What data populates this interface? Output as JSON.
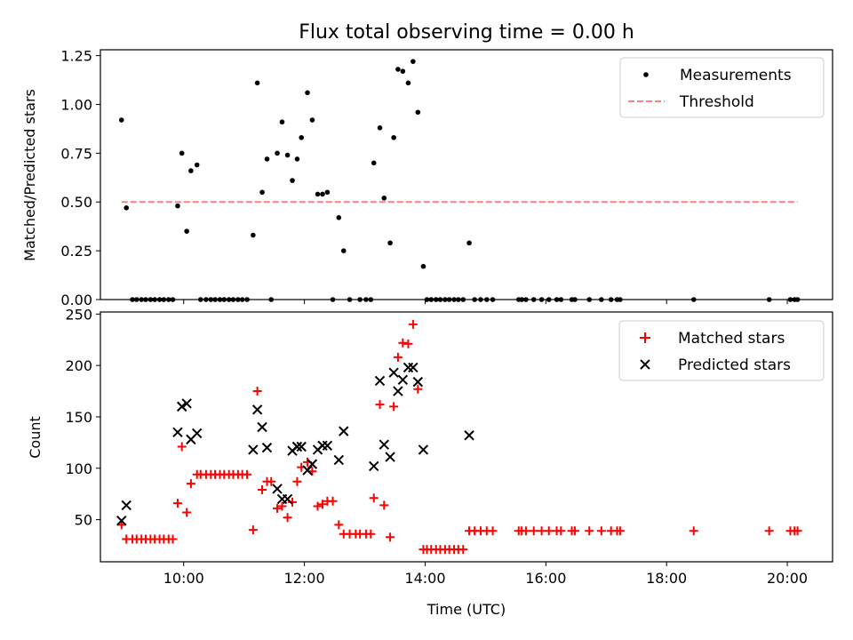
{
  "figure": {
    "title": "Flux total observing time = 0.00 h"
  },
  "chart_data": [
    {
      "type": "scatter",
      "ylabel": "Matched/Predicted stars",
      "xlabel": "",
      "xlim": [
        8.62,
        20.75
      ],
      "ylim": [
        0,
        1.28
      ],
      "yticks": [
        0.0,
        0.25,
        0.5,
        0.75,
        1.0,
        1.25
      ],
      "ytick_labels": [
        "0.00",
        "0.25",
        "0.50",
        "0.75",
        "1.00",
        "1.25"
      ],
      "xticks": [
        10,
        12,
        14,
        16,
        18,
        20
      ],
      "grid": false,
      "legend": {
        "position": "top-right",
        "entries": [
          "Measurements",
          "Threshold"
        ]
      },
      "series": [
        {
          "name": "Measurements",
          "color": "#000000",
          "marker": "dot",
          "points": [
            [
              8.97,
              0.92
            ],
            [
              9.05,
              0.47
            ],
            [
              9.15,
              0.0
            ],
            [
              9.22,
              0.0
            ],
            [
              9.3,
              0.0
            ],
            [
              9.37,
              0.0
            ],
            [
              9.45,
              0.0
            ],
            [
              9.52,
              0.0
            ],
            [
              9.6,
              0.0
            ],
            [
              9.67,
              0.0
            ],
            [
              9.75,
              0.0
            ],
            [
              9.82,
              0.0
            ],
            [
              9.9,
              0.48
            ],
            [
              9.97,
              0.75
            ],
            [
              10.05,
              0.35
            ],
            [
              10.12,
              0.66
            ],
            [
              10.22,
              0.69
            ],
            [
              10.28,
              0.0
            ],
            [
              10.37,
              0.0
            ],
            [
              10.45,
              0.0
            ],
            [
              10.52,
              0.0
            ],
            [
              10.6,
              0.0
            ],
            [
              10.67,
              0.0
            ],
            [
              10.75,
              0.0
            ],
            [
              10.82,
              0.0
            ],
            [
              10.9,
              0.0
            ],
            [
              10.97,
              0.0
            ],
            [
              11.05,
              0.0
            ],
            [
              11.15,
              0.33
            ],
            [
              11.22,
              1.11
            ],
            [
              11.3,
              0.55
            ],
            [
              11.38,
              0.72
            ],
            [
              11.45,
              0.0
            ],
            [
              11.55,
              0.75
            ],
            [
              11.63,
              0.91
            ],
            [
              11.72,
              0.74
            ],
            [
              11.8,
              0.61
            ],
            [
              11.88,
              0.72
            ],
            [
              11.95,
              0.83
            ],
            [
              12.05,
              1.06
            ],
            [
              12.13,
              0.92
            ],
            [
              12.22,
              0.54
            ],
            [
              12.3,
              0.54
            ],
            [
              12.38,
              0.55
            ],
            [
              12.47,
              0.0
            ],
            [
              12.57,
              0.42
            ],
            [
              12.65,
              0.25
            ],
            [
              12.75,
              0.0
            ],
            [
              12.92,
              0.0
            ],
            [
              13.02,
              0.0
            ],
            [
              13.1,
              0.0
            ],
            [
              13.15,
              0.7
            ],
            [
              13.25,
              0.88
            ],
            [
              13.32,
              0.52
            ],
            [
              13.42,
              0.29
            ],
            [
              13.48,
              0.83
            ],
            [
              13.55,
              1.18
            ],
            [
              13.63,
              1.17
            ],
            [
              13.72,
              1.11
            ],
            [
              13.8,
              1.22
            ],
            [
              13.88,
              0.96
            ],
            [
              13.97,
              0.17
            ],
            [
              14.03,
              0.0
            ],
            [
              14.1,
              0.0
            ],
            [
              14.18,
              0.0
            ],
            [
              14.25,
              0.0
            ],
            [
              14.33,
              0.0
            ],
            [
              14.4,
              0.0
            ],
            [
              14.48,
              0.0
            ],
            [
              14.55,
              0.0
            ],
            [
              14.63,
              0.0
            ],
            [
              14.73,
              0.29
            ],
            [
              14.82,
              0.0
            ],
            [
              14.92,
              0.0
            ],
            [
              15.02,
              0.0
            ],
            [
              15.12,
              0.0
            ],
            [
              15.55,
              0.0
            ],
            [
              15.6,
              0.0
            ],
            [
              15.67,
              0.0
            ],
            [
              15.8,
              0.0
            ],
            [
              15.93,
              0.0
            ],
            [
              16.05,
              0.0
            ],
            [
              16.18,
              0.0
            ],
            [
              16.25,
              0.0
            ],
            [
              16.43,
              0.0
            ],
            [
              16.48,
              0.0
            ],
            [
              16.72,
              0.0
            ],
            [
              16.92,
              0.0
            ],
            [
              17.08,
              0.0
            ],
            [
              17.18,
              0.0
            ],
            [
              17.23,
              0.0
            ],
            [
              18.45,
              0.0
            ],
            [
              19.7,
              0.0
            ],
            [
              20.05,
              0.0
            ],
            [
              20.12,
              0.0
            ],
            [
              20.17,
              0.0
            ]
          ]
        },
        {
          "name": "Threshold",
          "color": "#ff7f7f",
          "style": "dashed",
          "points": [
            [
              8.97,
              0.5
            ],
            [
              20.17,
              0.5
            ]
          ]
        }
      ]
    },
    {
      "type": "scatter",
      "ylabel": "Count",
      "xlabel": "Time (UTC)",
      "xlim": [
        8.62,
        20.75
      ],
      "ylim": [
        9,
        252
      ],
      "yticks": [
        50,
        100,
        150,
        200,
        250
      ],
      "ytick_labels": [
        "50",
        "100",
        "150",
        "200",
        "250"
      ],
      "xticks": [
        10,
        12,
        14,
        16,
        18,
        20
      ],
      "xtick_labels": [
        "10:00",
        "12:00",
        "14:00",
        "16:00",
        "18:00",
        "20:00"
      ],
      "grid": false,
      "legend": {
        "position": "top-right",
        "entries": [
          "Matched stars",
          "Predicted stars"
        ]
      },
      "series": [
        {
          "name": "Matched stars",
          "color": "#ff0000",
          "marker": "plus",
          "points": [
            [
              8.97,
              45
            ],
            [
              9.05,
              31
            ],
            [
              9.15,
              31
            ],
            [
              9.22,
              31
            ],
            [
              9.3,
              31
            ],
            [
              9.37,
              31
            ],
            [
              9.45,
              31
            ],
            [
              9.52,
              31
            ],
            [
              9.6,
              31
            ],
            [
              9.67,
              31
            ],
            [
              9.75,
              31
            ],
            [
              9.82,
              31
            ],
            [
              9.9,
              66
            ],
            [
              9.97,
              121
            ],
            [
              10.05,
              57
            ],
            [
              10.12,
              85
            ],
            [
              10.22,
              94
            ],
            [
              10.28,
              94
            ],
            [
              10.37,
              94
            ],
            [
              10.45,
              94
            ],
            [
              10.52,
              94
            ],
            [
              10.6,
              94
            ],
            [
              10.67,
              94
            ],
            [
              10.75,
              94
            ],
            [
              10.82,
              94
            ],
            [
              10.9,
              94
            ],
            [
              10.97,
              94
            ],
            [
              11.05,
              94
            ],
            [
              11.15,
              40
            ],
            [
              11.22,
              175
            ],
            [
              11.3,
              79
            ],
            [
              11.38,
              87
            ],
            [
              11.45,
              87
            ],
            [
              11.55,
              61
            ],
            [
              11.63,
              63
            ],
            [
              11.72,
              52
            ],
            [
              11.8,
              67
            ],
            [
              11.88,
              87
            ],
            [
              11.95,
              101
            ],
            [
              12.05,
              106
            ],
            [
              12.13,
              97
            ],
            [
              12.22,
              63
            ],
            [
              12.3,
              65
            ],
            [
              12.38,
              68
            ],
            [
              12.47,
              68
            ],
            [
              12.57,
              45
            ],
            [
              12.65,
              36
            ],
            [
              12.75,
              36
            ],
            [
              12.85,
              36
            ],
            [
              12.92,
              36
            ],
            [
              13.02,
              36
            ],
            [
              13.1,
              36
            ],
            [
              13.15,
              71
            ],
            [
              13.25,
              162
            ],
            [
              13.32,
              64
            ],
            [
              13.42,
              33
            ],
            [
              13.48,
              160
            ],
            [
              13.55,
              208
            ],
            [
              13.63,
              222
            ],
            [
              13.72,
              221
            ],
            [
              13.8,
              240
            ],
            [
              13.88,
              177
            ],
            [
              13.97,
              21
            ],
            [
              14.03,
              21
            ],
            [
              14.1,
              21
            ],
            [
              14.18,
              21
            ],
            [
              14.25,
              21
            ],
            [
              14.33,
              21
            ],
            [
              14.4,
              21
            ],
            [
              14.48,
              21
            ],
            [
              14.55,
              21
            ],
            [
              14.63,
              21
            ],
            [
              14.73,
              39
            ],
            [
              14.82,
              39
            ],
            [
              14.92,
              39
            ],
            [
              15.02,
              39
            ],
            [
              15.12,
              39
            ],
            [
              15.55,
              39
            ],
            [
              15.6,
              39
            ],
            [
              15.67,
              39
            ],
            [
              15.8,
              39
            ],
            [
              15.93,
              39
            ],
            [
              16.05,
              39
            ],
            [
              16.18,
              39
            ],
            [
              16.25,
              39
            ],
            [
              16.43,
              39
            ],
            [
              16.48,
              39
            ],
            [
              16.72,
              39
            ],
            [
              16.92,
              39
            ],
            [
              17.08,
              39
            ],
            [
              17.18,
              39
            ],
            [
              17.23,
              39
            ],
            [
              18.45,
              39
            ],
            [
              19.7,
              39
            ],
            [
              20.05,
              39
            ],
            [
              20.12,
              39
            ],
            [
              20.17,
              39
            ]
          ]
        },
        {
          "name": "Predicted stars",
          "color": "#000000",
          "marker": "x",
          "points": [
            [
              8.97,
              49
            ],
            [
              9.05,
              64
            ],
            [
              9.9,
              135
            ],
            [
              9.97,
              160
            ],
            [
              10.05,
              163
            ],
            [
              10.12,
              128
            ],
            [
              10.22,
              134
            ],
            [
              11.15,
              118
            ],
            [
              11.22,
              157
            ],
            [
              11.3,
              140
            ],
            [
              11.38,
              120
            ],
            [
              11.55,
              80
            ],
            [
              11.63,
              70
            ],
            [
              11.72,
              70
            ],
            [
              11.8,
              117
            ],
            [
              11.88,
              121
            ],
            [
              11.95,
              121
            ],
            [
              12.05,
              98
            ],
            [
              12.13,
              104
            ],
            [
              12.22,
              118
            ],
            [
              12.3,
              122
            ],
            [
              12.38,
              122
            ],
            [
              12.57,
              108
            ],
            [
              12.65,
              136
            ],
            [
              13.15,
              102
            ],
            [
              13.25,
              185
            ],
            [
              13.32,
              123
            ],
            [
              13.42,
              111
            ],
            [
              13.48,
              193
            ],
            [
              13.55,
              175
            ],
            [
              13.63,
              186
            ],
            [
              13.72,
              198
            ],
            [
              13.8,
              198
            ],
            [
              13.88,
              184
            ],
            [
              13.97,
              118
            ],
            [
              14.73,
              132
            ]
          ]
        }
      ]
    }
  ]
}
